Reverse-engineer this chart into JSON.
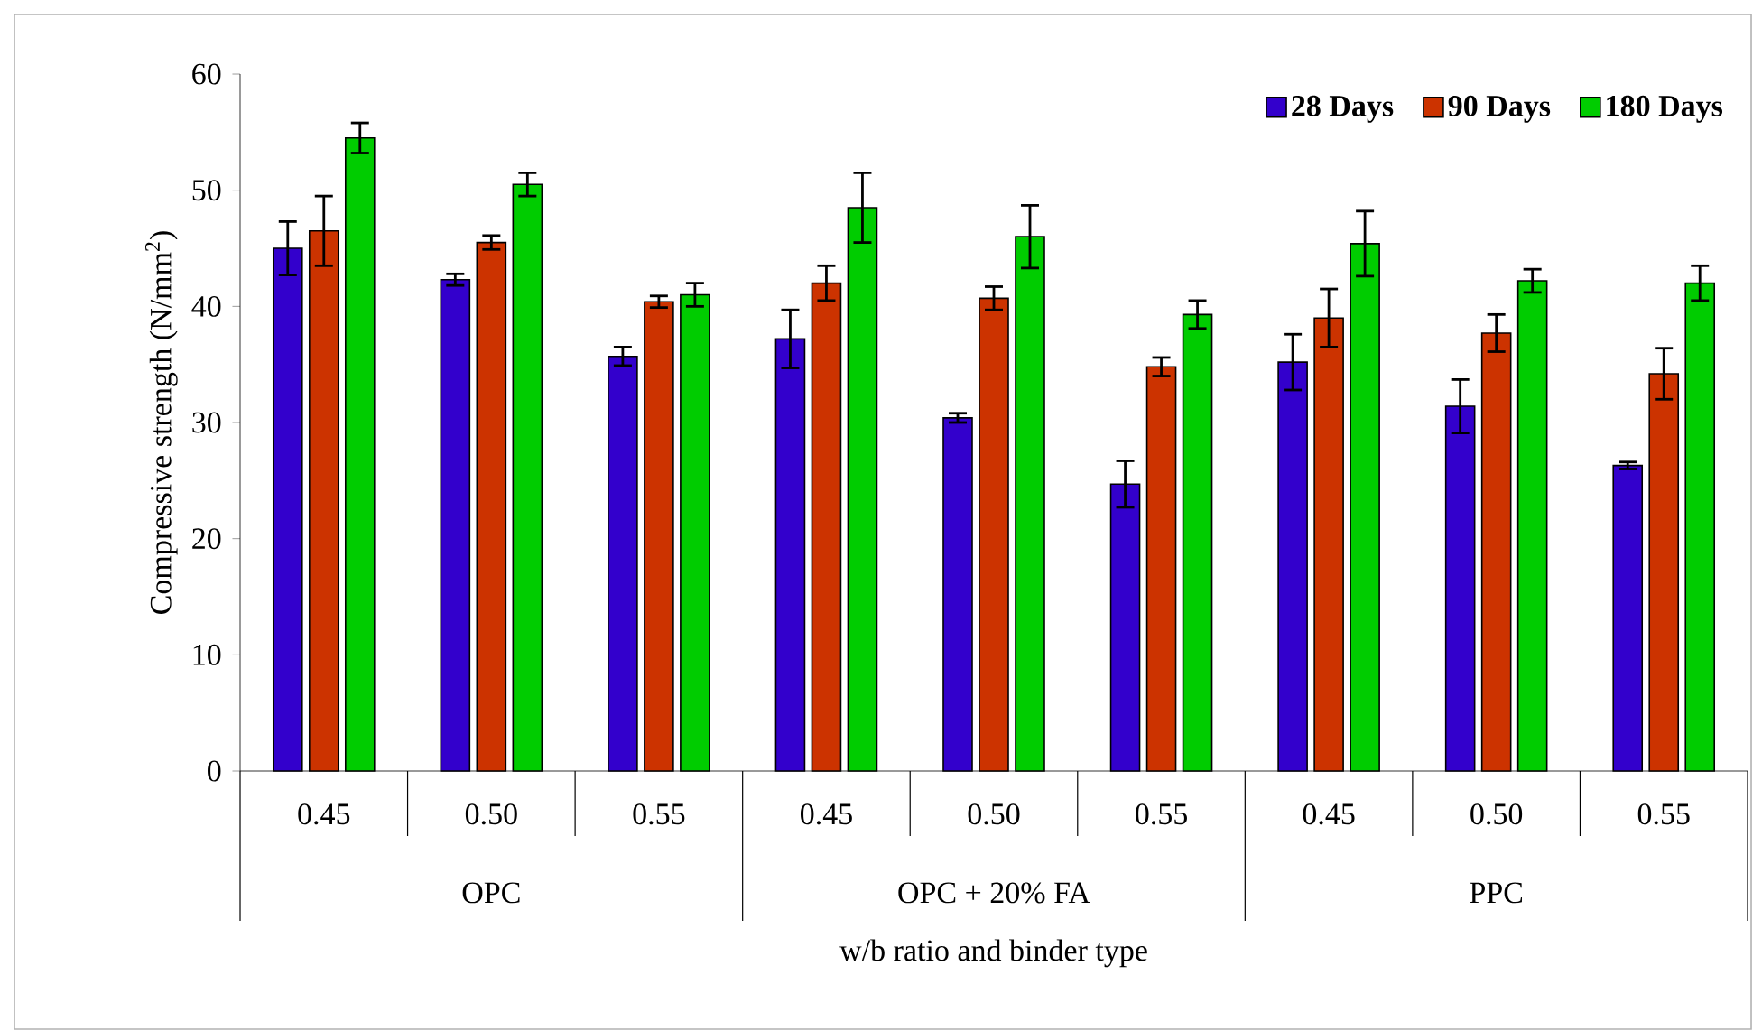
{
  "chart_data": {
    "type": "bar",
    "xlabel": "w/b ratio and binder type",
    "ylabel": "Compressive strength (N/mm$^{2}$)",
    "categories": [
      "0.45",
      "0.50",
      "0.55",
      "0.45",
      "0.50",
      "0.55",
      "0.45",
      "0.50",
      "0.55"
    ],
    "annotations": [
      "OPC",
      "OPC + 20% FA",
      "PPC"
    ],
    "series": [
      {
        "name": "28 Days",
        "color": "#3300cc",
        "values": [
          45.0,
          42.3,
          35.7,
          37.2,
          30.4,
          24.7,
          35.2,
          31.4,
          26.3
        ],
        "errors": [
          2.3,
          0.5,
          0.8,
          2.5,
          0.4,
          2.0,
          2.4,
          2.3,
          0.3
        ]
      },
      {
        "name": "90 Days",
        "color": "#cc3300",
        "values": [
          46.5,
          45.5,
          40.4,
          42.0,
          40.7,
          34.8,
          39.0,
          37.7,
          34.2
        ],
        "errors": [
          3.0,
          0.6,
          0.5,
          1.5,
          1.0,
          0.8,
          2.5,
          1.6,
          2.2
        ]
      },
      {
        "name": "180 Days",
        "color": "#00cc00",
        "values": [
          54.5,
          50.5,
          41.0,
          48.5,
          46.0,
          39.3,
          45.4,
          42.2,
          42.0
        ],
        "errors": [
          1.3,
          1.0,
          1.0,
          3.0,
          2.7,
          1.2,
          2.8,
          1.0,
          1.5
        ]
      }
    ],
    "ylim": [
      0,
      60
    ],
    "yticks": [
      0,
      10,
      20,
      30,
      40,
      50,
      60
    ],
    "legend": "top right",
    "grid": false
  }
}
